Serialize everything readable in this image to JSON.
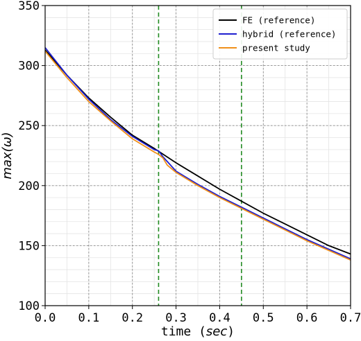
{
  "chart_data": {
    "type": "line",
    "xlabel": "time",
    "xlabel_unit": "sec",
    "ylabel": "max(ω)",
    "xlim": [
      0.0,
      0.7
    ],
    "ylim": [
      100,
      350
    ],
    "xticks": [
      0.0,
      0.1,
      0.2,
      0.3,
      0.4,
      0.5,
      0.6,
      0.7
    ],
    "xtick_labels": [
      "0.0",
      "0.1",
      "0.2",
      "0.3",
      "0.4",
      "0.5",
      "0.6",
      "0.7"
    ],
    "yticks": [
      100,
      150,
      200,
      250,
      300,
      350
    ],
    "ytick_labels": [
      "100",
      "150",
      "200",
      "250",
      "300",
      "350"
    ],
    "grid": true,
    "minor_grid": true,
    "legend_position": "top-right",
    "vertical_lines": [
      0.26,
      0.45
    ],
    "vertical_line_color": "#228b22",
    "series": [
      {
        "name": "FE (reference)",
        "color": "#000000",
        "x": [
          0.0,
          0.05,
          0.1,
          0.15,
          0.2,
          0.25,
          0.3,
          0.35,
          0.4,
          0.45,
          0.5,
          0.55,
          0.6,
          0.65,
          0.7
        ],
        "y": [
          313,
          292,
          273,
          257,
          242,
          231,
          219,
          208,
          197,
          187,
          177,
          168,
          159,
          150,
          143
        ]
      },
      {
        "name": "hybrid (reference)",
        "color": "#1f1fd0",
        "x": [
          0.0,
          0.05,
          0.1,
          0.15,
          0.2,
          0.25,
          0.26,
          0.27,
          0.28,
          0.3,
          0.35,
          0.4,
          0.45,
          0.5,
          0.55,
          0.6,
          0.65,
          0.7
        ],
        "y": [
          315,
          292,
          272,
          255,
          241,
          230,
          229,
          224,
          220,
          212,
          201,
          191,
          182,
          173,
          164,
          155,
          147,
          139
        ]
      },
      {
        "name": "present study",
        "color": "#f0901a",
        "x": [
          0.0,
          0.05,
          0.1,
          0.15,
          0.2,
          0.25,
          0.26,
          0.27,
          0.28,
          0.3,
          0.35,
          0.4,
          0.45,
          0.5,
          0.55,
          0.6,
          0.65,
          0.7
        ],
        "y": [
          312,
          290,
          270,
          254,
          239,
          228,
          226,
          223,
          217,
          211,
          200,
          190,
          181,
          172,
          163,
          154,
          146,
          138
        ]
      }
    ]
  }
}
